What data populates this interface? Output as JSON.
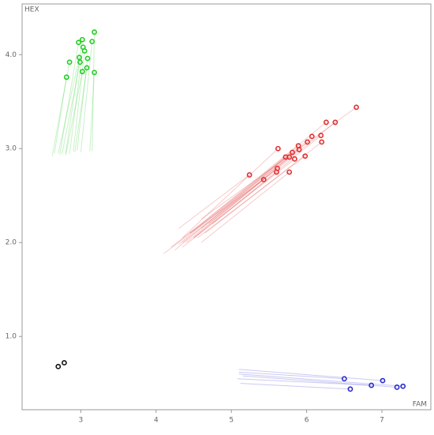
{
  "chart_data": {
    "type": "scatter",
    "x_label": "FAM",
    "y_label": "HEX",
    "xlim": [
      2.22,
      7.65
    ],
    "ylim": [
      0.22,
      4.54
    ],
    "xticks": [
      3,
      4,
      5,
      6,
      7
    ],
    "yticks": [
      {
        "value": 1,
        "label": "1.0"
      },
      {
        "value": 2,
        "label": "2.0"
      },
      {
        "value": 3,
        "label": "3.0"
      },
      {
        "value": 4,
        "label": "4.0"
      }
    ],
    "series": [
      {
        "color": "#22cc22",
        "x": [
          3.18,
          3.02,
          2.97,
          3.15,
          3.03,
          3.05,
          2.85,
          2.98,
          3.09,
          2.99,
          3.08,
          3.02,
          3.18,
          2.81
        ],
        "y": [
          4.24,
          4.16,
          4.13,
          4.14,
          4.08,
          4.04,
          3.92,
          3.97,
          3.96,
          3.92,
          3.86,
          3.82,
          3.81,
          3.76
        ],
        "trail_x": [
          3.15,
          2.8,
          2.72,
          3.0,
          2.85,
          2.9,
          2.62,
          2.7,
          2.95,
          2.75,
          2.92,
          2.8,
          3.12,
          2.65
        ],
        "trail_y": [
          2.97,
          2.95,
          2.93,
          2.96,
          2.94,
          2.97,
          2.92,
          2.95,
          2.98,
          2.94,
          2.96,
          2.93,
          2.97,
          2.95
        ]
      },
      {
        "color": "#e03030",
        "x": [
          6.66,
          6.26,
          6.38,
          5.62,
          6.07,
          6.19,
          6.2,
          6.01,
          5.89,
          5.9,
          5.81,
          5.77,
          5.84,
          5.72,
          5.98,
          5.24,
          5.43,
          5.61,
          5.6,
          5.77
        ],
        "y": [
          3.44,
          3.28,
          3.28,
          3.0,
          3.13,
          3.14,
          3.07,
          3.07,
          3.03,
          2.99,
          2.96,
          2.91,
          2.89,
          2.91,
          2.92,
          2.72,
          2.67,
          2.79,
          2.75,
          2.75
        ],
        "trail_x": [
          4.6,
          4.45,
          4.7,
          4.35,
          4.6,
          4.75,
          4.65,
          4.4,
          4.3,
          4.5,
          4.2,
          4.1,
          4.35,
          4.25,
          4.55,
          4.3,
          4.45,
          4.35,
          4.5,
          4.6
        ],
        "trail_y": [
          2.25,
          2.1,
          2.2,
          2.05,
          2.15,
          2.2,
          2.1,
          2.0,
          1.98,
          2.05,
          1.95,
          1.88,
          1.95,
          1.92,
          2.05,
          2.15,
          2.1,
          2.0,
          2.05,
          2.0
        ]
      },
      {
        "color": "#2a2ad0",
        "x": [
          6.5,
          6.58,
          6.86,
          7.01,
          7.2,
          7.28
        ],
        "y": [
          0.55,
          0.44,
          0.48,
          0.53,
          0.46,
          0.47
        ],
        "trail_x": [
          5.1,
          5.12,
          5.08,
          5.1,
          5.15,
          5.1
        ],
        "trail_y": [
          0.62,
          0.5,
          0.55,
          0.65,
          0.58,
          0.6
        ]
      },
      {
        "color": "#111111",
        "x": [
          2.7,
          2.78
        ],
        "y": [
          0.68,
          0.72
        ]
      }
    ]
  }
}
